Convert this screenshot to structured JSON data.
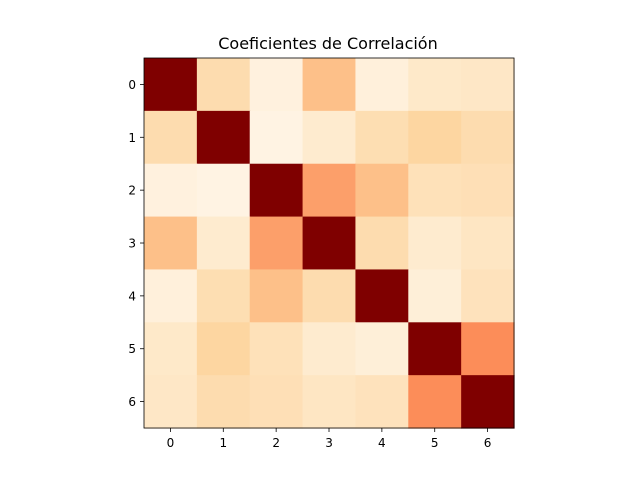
{
  "chart_data": {
    "type": "heatmap",
    "title": "Coeficientes de Correlación",
    "xlabel": "",
    "ylabel": "",
    "x_categories": [
      "0",
      "1",
      "2",
      "3",
      "4",
      "5",
      "6"
    ],
    "y_categories": [
      "0",
      "1",
      "2",
      "3",
      "4",
      "5",
      "6"
    ],
    "colormap": "OrRd",
    "value_range": [
      0,
      1
    ],
    "colorbar": false,
    "grid": false,
    "matrix": [
      [
        1.0,
        0.2,
        0.05,
        0.35,
        0.06,
        0.12,
        0.13
      ],
      [
        0.2,
        1.0,
        0.03,
        0.1,
        0.19,
        0.24,
        0.2
      ],
      [
        0.05,
        0.03,
        1.0,
        0.45,
        0.35,
        0.17,
        0.18
      ],
      [
        0.35,
        0.1,
        0.45,
        1.0,
        0.2,
        0.1,
        0.14
      ],
      [
        0.06,
        0.19,
        0.35,
        0.2,
        1.0,
        0.07,
        0.16
      ],
      [
        0.12,
        0.24,
        0.17,
        0.1,
        0.07,
        1.0,
        0.5
      ],
      [
        0.13,
        0.2,
        0.18,
        0.14,
        0.16,
        0.5,
        1.0
      ]
    ]
  }
}
